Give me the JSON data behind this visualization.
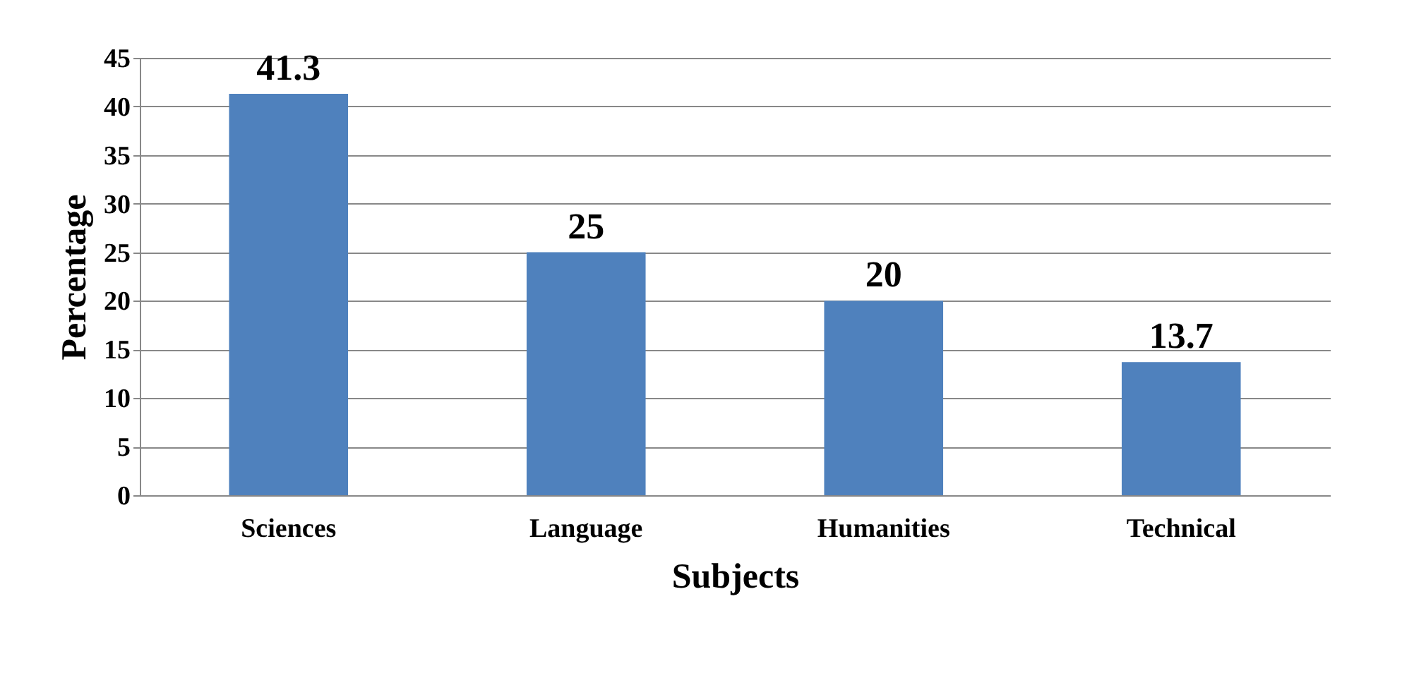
{
  "chart_data": {
    "type": "bar",
    "xlabel": "Subjects",
    "ylabel": "Percentage",
    "categories": [
      "Sciences",
      "Language",
      "Humanities",
      "Technical"
    ],
    "values": [
      41.3,
      25,
      20,
      13.7
    ],
    "color": "#4f81bd",
    "ylim": [
      0,
      45
    ],
    "yticks": [
      0,
      5,
      10,
      15,
      20,
      25,
      30,
      35,
      40,
      45
    ],
    "grid": "y",
    "data_labels": true
  }
}
